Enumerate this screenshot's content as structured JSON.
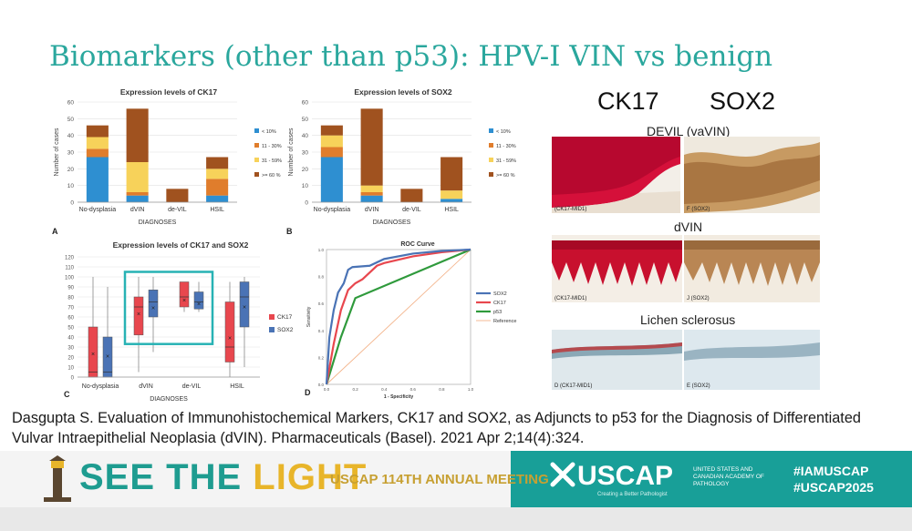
{
  "slide": {
    "title": "Biomarkers (other than p53): HPV-I VIN vs benign",
    "citation": "Dasgupta S. Evaluation of Immunohistochemical Markers, CK17 and SOX2, as Adjuncts to p53 for the Diagnosis of Differentiated Vulvar Intraepithelial Neoplasia (dVIN). Pharmaceuticals (Basel). 2021 Apr 2;14(4):324."
  },
  "colors": {
    "title": "#2aa79d",
    "c1": "#2e8fd1",
    "c2": "#e07d2c",
    "c3": "#f7d25a",
    "c4": "#a0521f",
    "ck17": "#e8474e",
    "sox2": "#4a73b5",
    "p53": "#2f9a3c",
    "ref": "#f3b38a",
    "box_outline": "#27b2b4"
  },
  "chart_data": [
    {
      "type": "bar",
      "panel": "A",
      "title": "Expression levels of CK17",
      "xlabel": "DIAGNOSES",
      "ylabel": "Number of cases",
      "ylim": [
        0,
        60
      ],
      "yticks": [
        "0",
        "10",
        "20",
        "30",
        "40",
        "50",
        "60"
      ],
      "categories": [
        "No-dysplasia",
        "dVIN",
        "de-VIL",
        "HSIL"
      ],
      "series": [
        {
          "name": "< 10%",
          "values": [
            27,
            4,
            0,
            4
          ]
        },
        {
          "name": "11 - 30%",
          "values": [
            5,
            2,
            0,
            10
          ]
        },
        {
          "name": "31 - 59%",
          "values": [
            7,
            18,
            0,
            6
          ]
        },
        {
          "name": ">= 60 %",
          "values": [
            7,
            32,
            8,
            7
          ]
        }
      ]
    },
    {
      "type": "bar",
      "panel": "B",
      "title": "Expression levels of SOX2",
      "xlabel": "DIAGNOSES",
      "ylabel": "Number of cases",
      "ylim": [
        0,
        60
      ],
      "yticks": [
        "0",
        "10",
        "20",
        "30",
        "40",
        "50",
        "60"
      ],
      "categories": [
        "No-dysplasia",
        "dVIN",
        "de-VIL",
        "HSIL"
      ],
      "series": [
        {
          "name": "< 10%",
          "values": [
            27,
            4,
            0,
            2
          ]
        },
        {
          "name": "11 - 30%",
          "values": [
            6,
            2,
            0,
            0
          ]
        },
        {
          "name": "31 - 59%",
          "values": [
            7,
            4,
            0,
            5
          ]
        },
        {
          "name": ">= 60 %",
          "values": [
            6,
            46,
            8,
            20
          ]
        }
      ]
    },
    {
      "type": "box",
      "panel": "C",
      "title": "Expression levels of CK17 and SOX2",
      "xlabel": "DIAGNOSES",
      "ylim": [
        0,
        120
      ],
      "yticks": [
        "0",
        "10",
        "20",
        "30",
        "40",
        "50",
        "60",
        "70",
        "80",
        "90",
        "100",
        "110",
        "120"
      ],
      "categories": [
        "No-dysplasia",
        "dVIN",
        "de-VIL",
        "HSIL"
      ],
      "series": [
        {
          "name": "CK17",
          "boxes": [
            {
              "min": 0,
              "q1": 0,
              "median": 5,
              "q3": 50,
              "max": 100,
              "mean": 23
            },
            {
              "min": 5,
              "q1": 42,
              "median": 70,
              "q3": 80,
              "max": 100,
              "mean": 63
            },
            {
              "min": 65,
              "q1": 70,
              "median": 80,
              "q3": 95,
              "max": 95,
              "mean": 77
            },
            {
              "min": 0,
              "q1": 15,
              "median": 30,
              "q3": 75,
              "max": 95,
              "mean": 39
            }
          ]
        },
        {
          "name": "SOX2",
          "boxes": [
            {
              "min": 0,
              "q1": 0,
              "median": 5,
              "q3": 40,
              "max": 90,
              "mean": 21
            },
            {
              "min": 25,
              "q1": 60,
              "median": 75,
              "q3": 87,
              "max": 100,
              "mean": 69
            },
            {
              "min": 65,
              "q1": 68,
              "median": 75,
              "q3": 85,
              "max": 95,
              "mean": 73
            },
            {
              "min": 10,
              "q1": 50,
              "median": 80,
              "q3": 95,
              "max": 100,
              "mean": 70
            }
          ]
        }
      ],
      "highlight_range": {
        "from_category": 1,
        "to_category": 2,
        "y_from": 33,
        "y_to": 105
      }
    },
    {
      "type": "line",
      "panel": "D",
      "title": "ROC Curve",
      "xlabel": "1 - Specificity",
      "ylabel": "Sensitivity",
      "xlim": [
        0,
        1
      ],
      "ylim": [
        0,
        1
      ],
      "xticks": [
        "0.0",
        "0.2",
        "0.4",
        "0.6",
        "0.8",
        "1.0"
      ],
      "yticks": [
        "0.0",
        "0.2",
        "0.4",
        "0.6",
        "0.8",
        "1.0"
      ],
      "series": [
        {
          "name": "SOX2",
          "x": [
            0,
            0.02,
            0.05,
            0.08,
            0.12,
            0.15,
            0.18,
            0.3,
            0.4,
            0.6,
            0.8,
            1.0
          ],
          "y": [
            0,
            0.35,
            0.55,
            0.68,
            0.75,
            0.85,
            0.87,
            0.88,
            0.93,
            0.97,
            0.99,
            1.0
          ]
        },
        {
          "name": "CK17",
          "x": [
            0,
            0.05,
            0.1,
            0.15,
            0.2,
            0.25,
            0.3,
            0.35,
            0.4,
            0.6,
            0.8,
            1.0
          ],
          "y": [
            0,
            0.3,
            0.55,
            0.7,
            0.75,
            0.78,
            0.83,
            0.88,
            0.9,
            0.95,
            0.98,
            1.0
          ]
        },
        {
          "name": "p53",
          "x": [
            0,
            0.1,
            0.2,
            1.0
          ],
          "y": [
            0,
            0.35,
            0.64,
            1.0
          ]
        },
        {
          "name": "Reference",
          "x": [
            0,
            1
          ],
          "y": [
            0,
            1
          ]
        }
      ]
    }
  ],
  "micrographs": {
    "col_ck17": "CK17",
    "col_sox2": "SOX2",
    "rows": [
      {
        "title": "DEVIL (vaVIN)",
        "left_label": "(CK17-MID1)",
        "right_label": "F (SOX2)"
      },
      {
        "title": "dVIN",
        "left_label": "(CK17-MID1)",
        "right_label": "J (SOX2)"
      },
      {
        "title": "Lichen sclerosus",
        "left_label": "D (CK17-MID1)",
        "right_label": "E (SOX2)"
      }
    ]
  },
  "footer": {
    "see_the": "SEE THE",
    "light": "LIGHT",
    "meeting": "USCAP 114TH ANNUAL MEETING",
    "uscap": "USCAP",
    "uscap_sub": "UNITED STATES AND CANADIAN ACADEMY OF PATHOLOGY",
    "tagline": "Creating a Better Pathologist",
    "hashtag1": "#IAMUSCAP",
    "hashtag2": "#USCAP2025"
  }
}
